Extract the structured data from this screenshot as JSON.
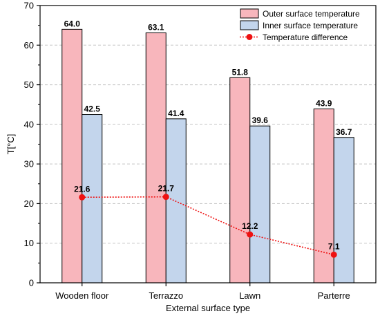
{
  "chart_data": {
    "type": "bar",
    "title": "",
    "xlabel": "External surface type",
    "ylabel": "T[°C]",
    "ylim": [
      0,
      70
    ],
    "yticks": [
      "0",
      "10",
      "20",
      "30",
      "40",
      "50",
      "60",
      "70"
    ],
    "grid": true,
    "legend_position": "top-right",
    "categories": [
      "Wooden floor",
      "Terrazzo",
      "Lawn",
      "Parterre"
    ],
    "series": [
      {
        "name": "Outer surface temperature",
        "kind": "bar",
        "color": "#f8b6bc",
        "values": [
          64.0,
          63.1,
          51.8,
          43.9
        ],
        "labels": [
          "64.0",
          "63.1",
          "51.8",
          "43.9"
        ]
      },
      {
        "name": "Inner surface temperature",
        "kind": "bar",
        "color": "#c3d5ec",
        "values": [
          42.5,
          41.4,
          39.6,
          36.7
        ],
        "labels": [
          "42.5",
          "41.4",
          "39.6",
          "36.7"
        ]
      },
      {
        "name": "Temperature difference",
        "kind": "line",
        "color": "#ee1111",
        "values": [
          21.6,
          21.7,
          12.2,
          7.1
        ],
        "labels": [
          "21.6",
          "21.7",
          "12.2",
          "7.1"
        ]
      }
    ]
  }
}
